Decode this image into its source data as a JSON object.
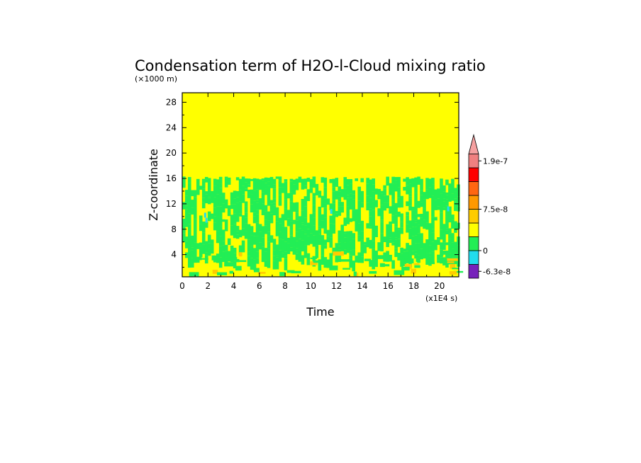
{
  "chart_data": {
    "type": "heatmap",
    "title": "Condensation term of H2O-l-Cloud mixing ratio",
    "y_unit_note": "(×1000 m)",
    "x_unit_note": "(x1E4 s)",
    "xlabel": "Time",
    "ylabel": "Z-coordinate",
    "xlim": [
      0,
      21.5
    ],
    "ylim": [
      0.5,
      29.5
    ],
    "x_ticks": [
      0,
      2,
      4,
      6,
      8,
      10,
      12,
      14,
      16,
      18,
      20
    ],
    "x_tick_labels": [
      "0",
      "2",
      "4",
      "6",
      "8",
      "10",
      "12",
      "14",
      "16",
      "18",
      "20"
    ],
    "y_ticks": [
      4,
      8,
      12,
      16,
      20,
      24,
      28
    ],
    "y_tick_labels": [
      "4",
      "8",
      "12",
      "16",
      "20",
      "24",
      "28"
    ],
    "regions": {
      "upper_layer_value": "0",
      "cloud_band_z_range": [
        4.5,
        16.3
      ],
      "lower_layer_z_range": [
        0.5,
        4.5
      ],
      "dominant_color_cloud_band": "#22ee55",
      "background_color": "#ffff00"
    },
    "colorbar": {
      "levels_colors": [
        "#7722bb",
        "#22ddee",
        "#22ee55",
        "#ffff00",
        "#ffcc00",
        "#ff9900",
        "#ff6611",
        "#ff0000",
        "#f08080"
      ],
      "triangle_color": "#f5a0a0",
      "labels": [
        "-6.3e-8",
        "0",
        "7.5e-8",
        "1.9e-7"
      ],
      "label_levels": [
        0.5,
        2,
        5,
        8.5
      ]
    }
  }
}
